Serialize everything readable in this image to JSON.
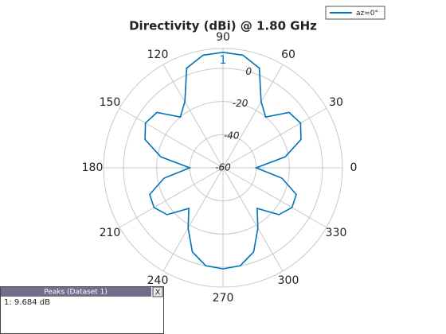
{
  "chart_data": {
    "type": "polar",
    "title": "Directivity (dBi) @ 1.80 GHz",
    "theta": [
      0,
      10,
      20,
      30,
      40,
      50,
      60,
      70,
      80,
      90,
      100,
      110,
      120,
      130,
      140,
      150,
      160,
      170,
      180,
      190,
      200,
      210,
      220,
      230,
      240,
      250,
      260,
      270,
      280,
      290,
      300,
      310,
      320,
      330,
      340,
      350
    ],
    "series": [
      {
        "name": "az=0°",
        "color": "#0072bd",
        "values": [
          -40,
          -22,
          -10,
          -6,
          -8,
          -20,
          -14,
          4,
          9,
          9.684,
          9,
          4,
          -14,
          -20,
          -8,
          -6,
          -10,
          -22,
          -40,
          -24,
          -13,
          -12,
          -16,
          -28,
          -18,
          -6,
          0,
          1,
          0,
          -6,
          -18,
          -28,
          -16,
          -12,
          -13,
          -24
        ]
      }
    ],
    "thetaticks": [
      0,
      30,
      60,
      90,
      120,
      150,
      180,
      210,
      240,
      270,
      300,
      330
    ],
    "rlim": [
      -60,
      12
    ],
    "rticks": [
      -60,
      -40,
      -20,
      0
    ],
    "grid": true,
    "legend": "upper right",
    "peak_marker": {
      "label": "1",
      "theta": 90
    },
    "peaks_panel": {
      "title": "Peaks (Dataset 1)",
      "close": "X",
      "entries": [
        "1: 9.684 dB"
      ]
    }
  }
}
